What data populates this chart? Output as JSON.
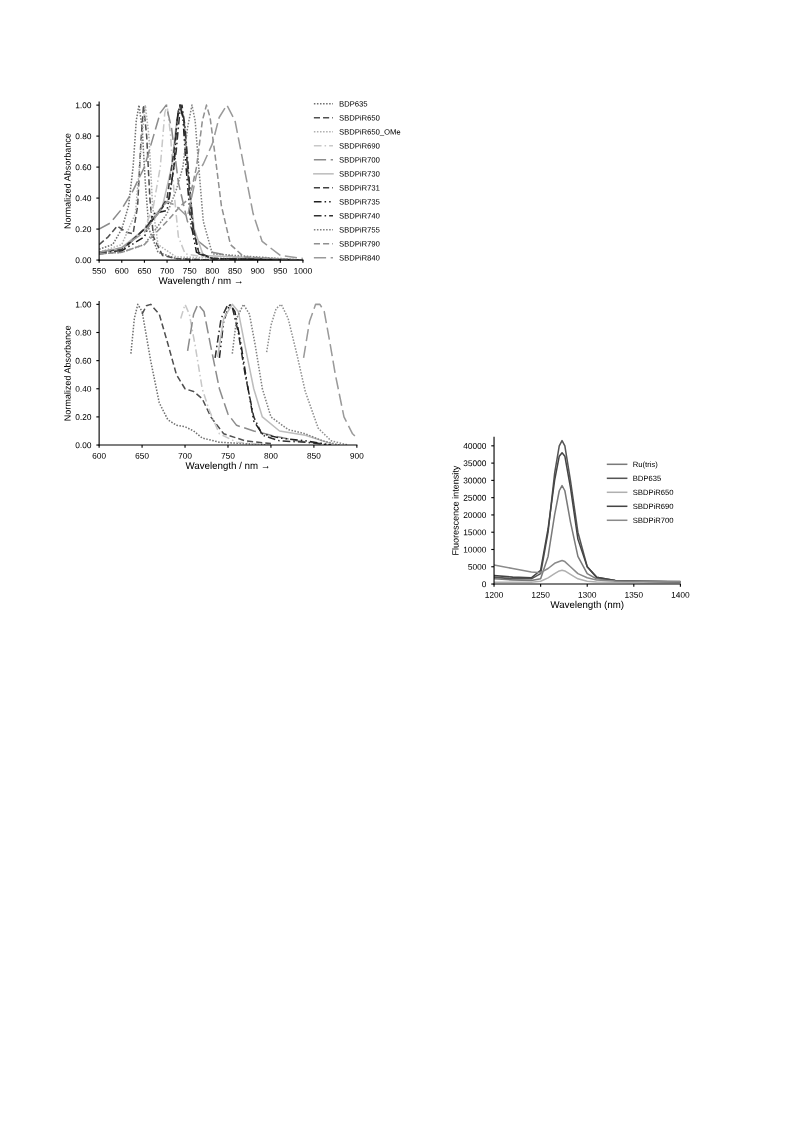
{
  "chart_data": [
    {
      "type": "line",
      "xlabel": "Wavelength / nm →",
      "ylabel": "Normalized Absorbance",
      "xlim": [
        550,
        1000
      ],
      "xticks": [
        550,
        600,
        650,
        700,
        750,
        800,
        850,
        900,
        950,
        1000
      ],
      "ylim": [
        0,
        1.02
      ],
      "yticks": [
        {
          "value": 0,
          "label": "0.00"
        },
        {
          "value": 0.2,
          "label": "0.20"
        },
        {
          "value": 0.4,
          "label": "0.40"
        },
        {
          "value": 0.6,
          "label": "0.60"
        },
        {
          "value": 0.8,
          "label": "0.80"
        },
        {
          "value": 1.0,
          "label": "1.00"
        }
      ],
      "grid": false,
      "legend": "right",
      "marker": "none",
      "series": [
        {
          "name": "BDP635",
          "color": "#707070",
          "line_style": "dotted",
          "x": [
            550,
            580,
            600,
            615,
            625,
            632,
            638,
            645,
            652,
            660,
            680,
            720,
            800,
            1000
          ],
          "values": [
            0.07,
            0.1,
            0.2,
            0.35,
            0.6,
            0.9,
            1.0,
            0.85,
            0.5,
            0.2,
            0.05,
            0.01,
            0,
            0
          ]
        },
        {
          "name": "SBDPiR650",
          "color": "#505050",
          "line_style": "dashed",
          "x": [
            550,
            570,
            590,
            610,
            625,
            635,
            642,
            648,
            655,
            662,
            670,
            690,
            720,
            800,
            1000
          ],
          "values": [
            0.1,
            0.15,
            0.22,
            0.18,
            0.17,
            0.35,
            0.75,
            1.0,
            0.8,
            0.4,
            0.15,
            0.03,
            0.01,
            0,
            0
          ]
        },
        {
          "name": "SBDPiR650_OMe",
          "color": "#b0b0b0",
          "line_style": "dotted",
          "x": [
            550,
            600,
            630,
            645,
            652,
            660,
            668,
            680,
            720,
            1000
          ],
          "values": [
            0.05,
            0.1,
            0.3,
            0.8,
            1.0,
            0.8,
            0.35,
            0.1,
            0.02,
            0
          ]
        },
        {
          "name": "SBDPiR690",
          "color": "#c8c8c8",
          "line_style": "dashdot",
          "x": [
            550,
            600,
            650,
            670,
            685,
            695,
            700,
            708,
            715,
            725,
            740,
            800,
            1000
          ],
          "values": [
            0.05,
            0.07,
            0.2,
            0.35,
            0.6,
            0.95,
            1.0,
            0.8,
            0.45,
            0.15,
            0.04,
            0.01,
            0
          ]
        },
        {
          "name": "SBDPiR700",
          "color": "#8c8c8c",
          "line_style": "longdash",
          "x": [
            550,
            575,
            600,
            625,
            650,
            670,
            685,
            698,
            710,
            725,
            745,
            770,
            800,
            850,
            1000
          ],
          "values": [
            0.2,
            0.24,
            0.33,
            0.45,
            0.6,
            0.8,
            0.95,
            1.0,
            0.85,
            0.5,
            0.25,
            0.12,
            0.05,
            0.02,
            0
          ]
        },
        {
          "name": "SBDPiR730",
          "color": "#bdbdbd",
          "line_style": "solid",
          "x": [
            550,
            600,
            650,
            690,
            710,
            722,
            730,
            738,
            748,
            760,
            780,
            1000
          ],
          "values": [
            0.05,
            0.08,
            0.2,
            0.35,
            0.6,
            0.92,
            1.0,
            0.9,
            0.5,
            0.2,
            0.03,
            0
          ]
        },
        {
          "name": "SBDPiR731",
          "color": "#404040",
          "line_style": "dashed",
          "x": [
            550,
            600,
            650,
            680,
            700,
            715,
            725,
            730,
            737,
            745,
            755,
            770,
            800,
            1000
          ],
          "values": [
            0.05,
            0.07,
            0.2,
            0.3,
            0.4,
            0.7,
            0.97,
            1.0,
            0.9,
            0.6,
            0.25,
            0.05,
            0.01,
            0
          ]
        },
        {
          "name": "SBDPiR735",
          "color": "#202020",
          "line_style": "dashdotdot",
          "x": [
            550,
            600,
            650,
            670,
            700,
            715,
            722,
            728,
            735,
            742,
            752,
            765,
            800,
            1000
          ],
          "values": [
            0.04,
            0.06,
            0.15,
            0.3,
            0.32,
            0.6,
            0.9,
            1.0,
            0.92,
            0.6,
            0.25,
            0.05,
            0.01,
            0
          ]
        },
        {
          "name": "SBDPiR740",
          "color": "#303030",
          "line_style": "dashdot",
          "x": [
            550,
            600,
            650,
            680,
            705,
            720,
            728,
            733,
            740,
            748,
            758,
            770,
            800,
            1000
          ],
          "values": [
            0.05,
            0.06,
            0.2,
            0.3,
            0.4,
            0.7,
            0.95,
            1.0,
            0.85,
            0.55,
            0.2,
            0.04,
            0.01,
            0
          ]
        },
        {
          "name": "SBDPiR755",
          "color": "#808080",
          "line_style": "dotted",
          "x": [
            550,
            600,
            650,
            700,
            720,
            735,
            745,
            755,
            762,
            770,
            780,
            800,
            1000
          ],
          "values": [
            0.04,
            0.05,
            0.1,
            0.3,
            0.45,
            0.6,
            0.85,
            1.0,
            0.9,
            0.6,
            0.25,
            0.04,
            0
          ]
        },
        {
          "name": "SBDPiR790",
          "color": "#909090",
          "line_style": "dashed",
          "x": [
            550,
            600,
            650,
            700,
            730,
            750,
            765,
            778,
            787,
            795,
            805,
            820,
            840,
            870,
            1000
          ],
          "values": [
            0.04,
            0.05,
            0.1,
            0.25,
            0.35,
            0.4,
            0.6,
            0.9,
            1.0,
            0.92,
            0.7,
            0.35,
            0.1,
            0.02,
            0
          ]
        },
        {
          "name": "SBDPiR840",
          "color": "#9a9a9a",
          "line_style": "longdash",
          "x": [
            550,
            600,
            650,
            700,
            720,
            745,
            765,
            780,
            800,
            815,
            832,
            850,
            870,
            890,
            910,
            950,
            1000
          ],
          "values": [
            0.05,
            0.08,
            0.18,
            0.38,
            0.35,
            0.28,
            0.55,
            0.62,
            0.75,
            0.92,
            1.0,
            0.9,
            0.6,
            0.3,
            0.12,
            0.03,
            0.01
          ]
        }
      ]
    },
    {
      "type": "line",
      "xlabel": "Wavelength / nm →",
      "ylabel": "Normalized Absorbance",
      "xlim": [
        600,
        900
      ],
      "xticks": [
        600,
        650,
        700,
        750,
        800,
        850,
        900
      ],
      "ylim": [
        0,
        1.02
      ],
      "yticks": [
        {
          "value": 0,
          "label": "0.00"
        },
        {
          "value": 0.2,
          "label": "0.20"
        },
        {
          "value": 0.4,
          "label": "0.40"
        },
        {
          "value": 0.6,
          "label": "0.60"
        },
        {
          "value": 0.8,
          "label": "0.80"
        },
        {
          "value": 1.0,
          "label": "1.00"
        }
      ],
      "grid": false,
      "marker": "none",
      "series": [
        {
          "color": "#707070",
          "line_style": "dotted",
          "x": [
            637,
            641,
            645,
            650,
            660,
            670,
            680,
            690,
            700,
            710,
            720,
            740,
            770,
            800
          ],
          "values": [
            0.65,
            0.9,
            1.0,
            0.95,
            0.6,
            0.3,
            0.18,
            0.14,
            0.13,
            0.1,
            0.05,
            0.02,
            0.01,
            0
          ]
        },
        {
          "color": "#505050",
          "line_style": "dashed",
          "x": [
            650,
            655,
            660,
            670,
            680,
            690,
            700,
            710,
            720,
            730,
            745,
            770,
            800
          ],
          "values": [
            0.93,
            0.99,
            1.0,
            0.93,
            0.72,
            0.5,
            0.4,
            0.38,
            0.33,
            0.2,
            0.08,
            0.03,
            0.01
          ]
        },
        {
          "color": "#c8c8c8",
          "line_style": "dashdot",
          "x": [
            695,
            700,
            705,
            712,
            720,
            728,
            740,
            760,
            800
          ],
          "values": [
            0.9,
            1.0,
            0.93,
            0.7,
            0.4,
            0.25,
            0.08,
            0.02,
            0
          ]
        },
        {
          "color": "#8c8c8c",
          "line_style": "longdash",
          "x": [
            703,
            710,
            715,
            722,
            730,
            740,
            750,
            760,
            780,
            800,
            830,
            860
          ],
          "values": [
            0.67,
            0.93,
            1.0,
            0.95,
            0.7,
            0.4,
            0.22,
            0.14,
            0.1,
            0.07,
            0.03,
            0.01
          ]
        },
        {
          "color": "#303030",
          "line_style": "dashdot",
          "x": [
            735,
            742,
            750,
            755,
            762,
            770,
            780,
            790,
            810,
            840,
            870
          ],
          "values": [
            0.62,
            0.9,
            1.0,
            0.98,
            0.8,
            0.5,
            0.2,
            0.07,
            0.03,
            0.02,
            0
          ]
        },
        {
          "color": "#202020",
          "line_style": "dashdotdot",
          "x": [
            740,
            745,
            752,
            758,
            765,
            772,
            780,
            790,
            810,
            840,
            870
          ],
          "values": [
            0.62,
            0.88,
            1.0,
            0.95,
            0.72,
            0.45,
            0.17,
            0.08,
            0.05,
            0.03,
            0
          ]
        },
        {
          "color": "#bdbdbd",
          "line_style": "solid",
          "x": [
            738,
            745,
            755,
            762,
            770,
            780,
            790,
            810,
            840,
            870
          ],
          "values": [
            0.63,
            0.9,
            1.0,
            0.95,
            0.7,
            0.4,
            0.2,
            0.1,
            0.07,
            0.01
          ]
        },
        {
          "color": "#808080",
          "line_style": "dotted",
          "x": [
            755,
            760,
            768,
            775,
            782,
            790,
            800,
            820,
            840,
            860,
            880
          ],
          "values": [
            0.65,
            0.9,
            1.0,
            0.93,
            0.7,
            0.4,
            0.2,
            0.11,
            0.08,
            0.03,
            0
          ]
        },
        {
          "color": "#909090",
          "line_style": "dotted",
          "x": [
            795,
            800,
            806,
            812,
            820,
            830,
            840,
            855,
            870,
            890
          ],
          "values": [
            0.66,
            0.85,
            0.97,
            1.0,
            0.9,
            0.65,
            0.38,
            0.12,
            0.03,
            0
          ]
        },
        {
          "color": "#9a9a9a",
          "line_style": "longdash",
          "x": [
            838,
            845,
            852,
            857,
            862,
            868,
            875,
            885,
            895,
            900
          ],
          "values": [
            0.62,
            0.88,
            1.0,
            1.0,
            0.95,
            0.75,
            0.5,
            0.2,
            0.08,
            0.05
          ]
        }
      ]
    },
    {
      "type": "line",
      "xlabel": "Wavelength (nm)",
      "ylabel": "Fluorescence intensity",
      "xlim": [
        1200,
        1400
      ],
      "xticks": [
        1200,
        1250,
        1300,
        1350,
        1400
      ],
      "ylim": [
        0,
        42500
      ],
      "yticks": [
        0,
        5000,
        10000,
        15000,
        20000,
        25000,
        30000,
        35000,
        40000
      ],
      "grid": false,
      "legend": "center right",
      "marker": "none",
      "x": [
        1200,
        1220,
        1240,
        1250,
        1258,
        1265,
        1270,
        1273,
        1276,
        1282,
        1290,
        1300,
        1310,
        1330,
        1360,
        1400
      ],
      "series": [
        {
          "name": "Ru(tris)",
          "color": "#7a7a7a",
          "line_style": "solid",
          "values": [
            1500,
            1200,
            1000,
            1500,
            8000,
            20000,
            27000,
            28500,
            27000,
            18000,
            8000,
            3000,
            1500,
            1000,
            800,
            700
          ]
        },
        {
          "name": "BDP635",
          "color": "#555555",
          "line_style": "solid",
          "values": [
            2000,
            1500,
            1500,
            3000,
            15000,
            32000,
            40000,
            41500,
            40000,
            30000,
            15000,
            5000,
            2000,
            1000,
            800,
            600
          ]
        },
        {
          "name": "SBDPiR650",
          "color": "#b0b0b0",
          "line_style": "solid",
          "values": [
            500,
            500,
            500,
            800,
            1800,
            3000,
            3800,
            4000,
            3800,
            2800,
            1500,
            800,
            600,
            500,
            400,
            400
          ]
        },
        {
          "name": "SBDPiR690",
          "color": "#454545",
          "line_style": "solid",
          "values": [
            2500,
            2000,
            1800,
            4000,
            16000,
            30000,
            37000,
            38000,
            37000,
            28000,
            13000,
            5000,
            2000,
            1000,
            800,
            600
          ]
        },
        {
          "name": "SBDPiR700",
          "color": "#8a8a8a",
          "line_style": "solid",
          "values": [
            5500,
            4500,
            3500,
            3300,
            4500,
            6000,
            6500,
            6800,
            6500,
            5000,
            3000,
            1800,
            1200,
            900,
            800,
            700
          ]
        }
      ]
    }
  ]
}
